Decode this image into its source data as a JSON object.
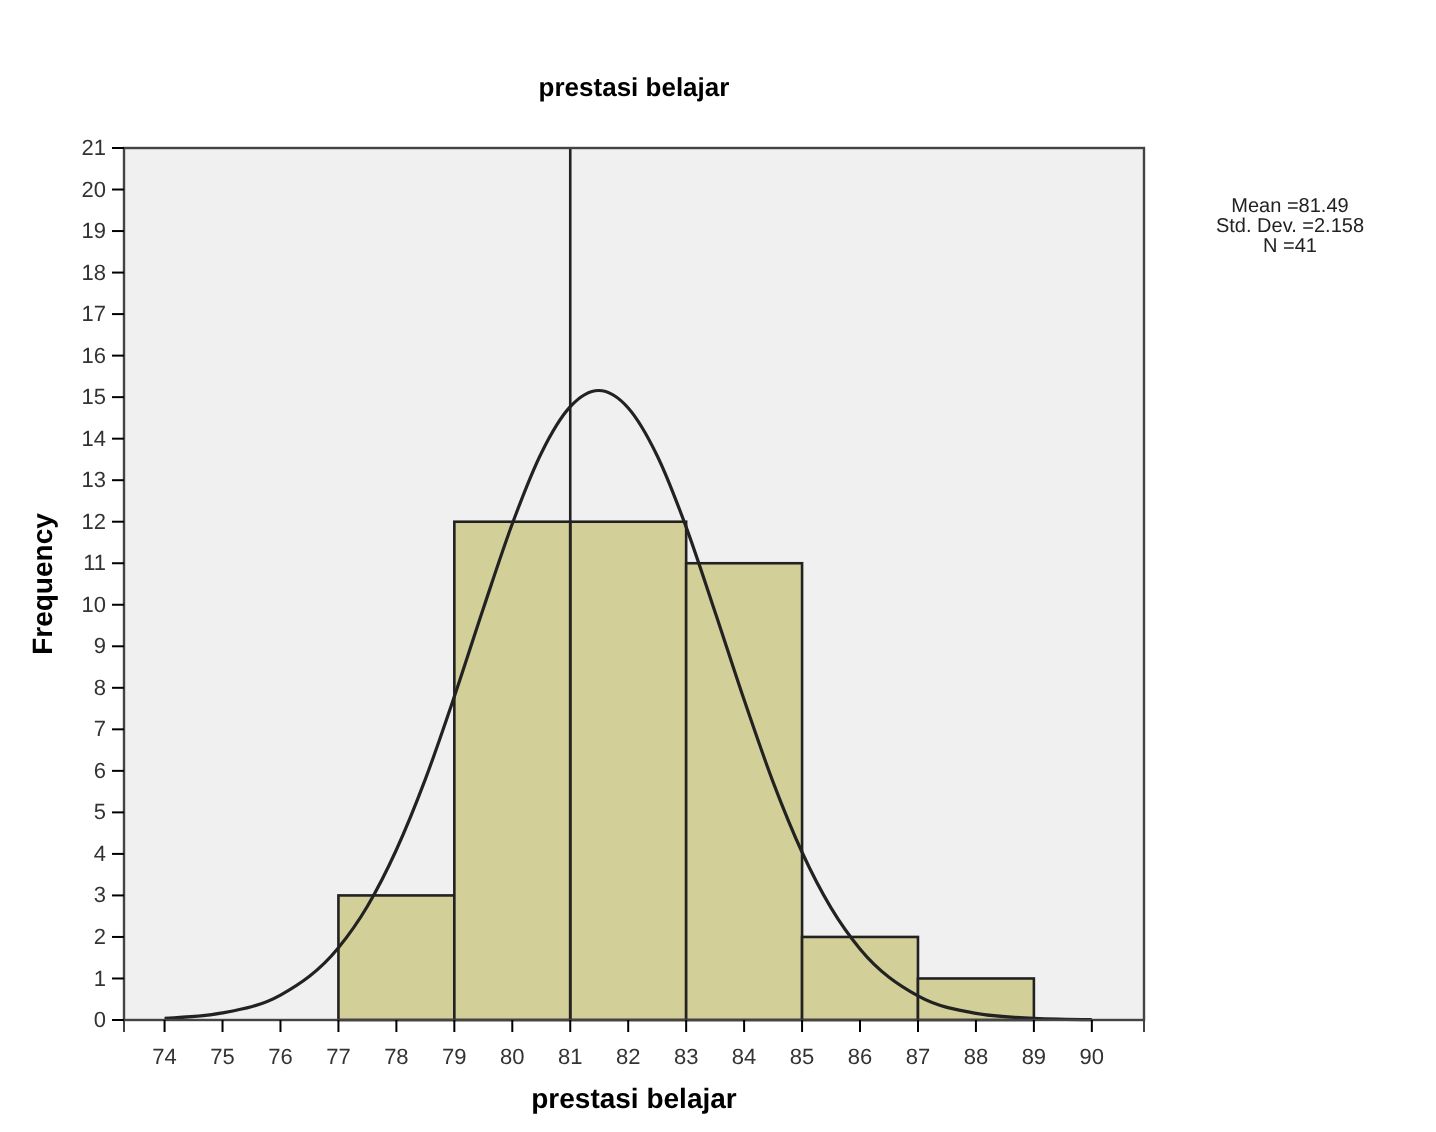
{
  "chart_data": {
    "type": "histogram",
    "title": "prestasi belajar",
    "xlabel": "prestasi belajar",
    "ylabel": "Frequency",
    "annotations": [
      "Mean =81.49",
      "Std. Dev. =2.158",
      "N =41"
    ],
    "series": [
      {
        "bins": [
          77,
          79,
          81,
          83,
          85,
          87,
          89
        ],
        "values": [
          3,
          12,
          12,
          11,
          2,
          1
        ],
        "color": "#d3cf98"
      },
      {
        "type": "line",
        "color": "#222222",
        "x": [
          74,
          75,
          76,
          77,
          77.5,
          78,
          78.5,
          79,
          79.5,
          80,
          80.5,
          81,
          81.49,
          82,
          82.5,
          83,
          83.5,
          84,
          84.5,
          85,
          85.5,
          86,
          87,
          88,
          89,
          90
        ],
        "values": [
          0.04,
          0.17,
          0.6,
          1.74,
          2.74,
          4.1,
          5.8,
          7.79,
          9.91,
          11.95,
          13.65,
          14.77,
          15.16,
          14.74,
          13.59,
          11.87,
          9.82,
          7.71,
          5.73,
          4.04,
          2.7,
          1.71,
          0.58,
          0.16,
          0.04,
          0.01
        ]
      }
    ],
    "ref_lines": [
      {
        "axis": "x",
        "value": 81,
        "color": "#222222"
      }
    ],
    "xlim": [
      73.3,
      90.9
    ],
    "xticks": [
      74,
      75,
      76,
      77,
      78,
      79,
      80,
      81,
      82,
      83,
      84,
      85,
      86,
      87,
      88,
      89,
      90
    ],
    "ylim": [
      0,
      21
    ],
    "yticks": [
      0,
      1,
      2,
      3,
      4,
      5,
      6,
      7,
      8,
      9,
      10,
      11,
      12,
      13,
      14,
      15,
      16,
      17,
      18,
      19,
      20,
      21
    ],
    "grid": false
  }
}
